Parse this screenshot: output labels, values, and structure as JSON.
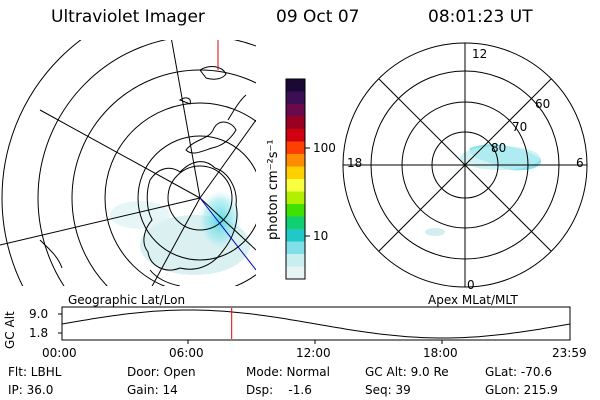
{
  "header": {
    "instrument": "Ultraviolet Imager",
    "date": "09 Oct 07",
    "time": "08:01:23 UT"
  },
  "colorbar": {
    "unit_label": "photon cm⁻²s⁻¹",
    "ticks": [
      "100",
      "10"
    ],
    "colors": [
      "#1a0a33",
      "#3c0f55",
      "#6a0a4a",
      "#9a0020",
      "#d00010",
      "#ff4000",
      "#ff8c00",
      "#ffd000",
      "#f8ff40",
      "#b0f000",
      "#40e000",
      "#10d070",
      "#20c8c8",
      "#80e0e8",
      "#c8eef0",
      "#e6f4f4"
    ]
  },
  "left_panel": {
    "label": "Geographic Lat/Lon"
  },
  "right_panel": {
    "label": "Apex MLat/MLT",
    "mlt_labels": [
      "12",
      "18",
      "6",
      "0"
    ],
    "lat_labels": [
      "60",
      "70",
      "80"
    ]
  },
  "altitude_strip": {
    "axis_label": "GC Alt",
    "y_ticks": [
      "9.0",
      "1.8"
    ],
    "x_ticks": [
      "00:00",
      "06:00",
      "12:00",
      "18:00",
      "23:59"
    ],
    "marker_time": "08:01"
  },
  "info": {
    "flt": "Flt: LBHL",
    "ip": "IP: 36.0",
    "door": "Door: Open",
    "gain": "Gain: 14",
    "mode": "Mode: Normal",
    "dsp": "Dsp:    -1.6",
    "gcalt": "GC Alt: 9.0 Re",
    "seq": "Seq: 39",
    "glat": "GLat: -70.6",
    "glon": "GLon: 215.9"
  }
}
